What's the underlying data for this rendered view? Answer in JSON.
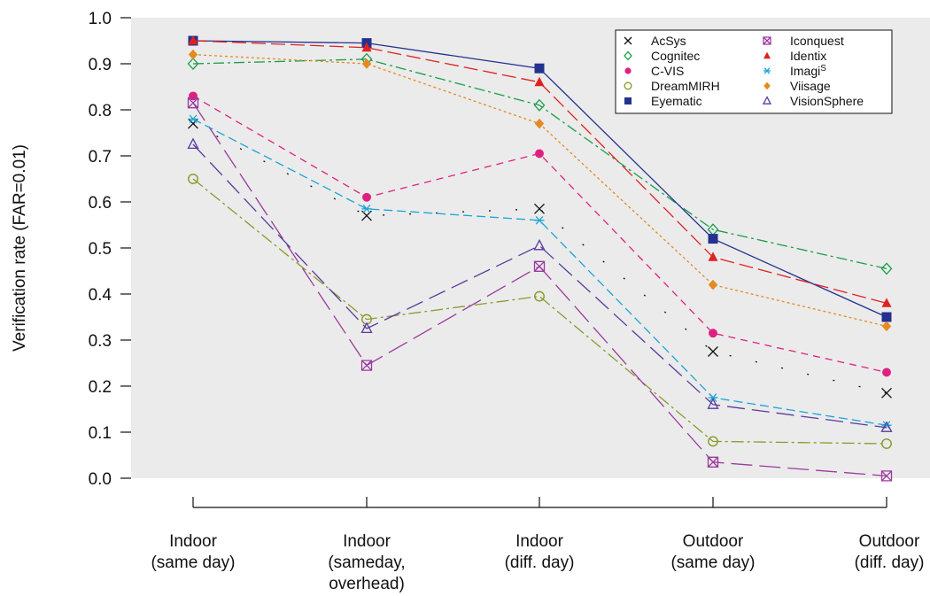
{
  "chart_data": {
    "type": "line",
    "title": "",
    "xlabel": "",
    "ylabel": "Verification rate (FAR=0.01)",
    "ylim": [
      0.0,
      1.0
    ],
    "yticks": [
      "1.0",
      "0.9",
      "0.8",
      "0.7",
      "0.6",
      "0.5",
      "0.4",
      "0.3",
      "0.2",
      "0.1",
      "0.0"
    ],
    "ytick_values": [
      1.0,
      0.9,
      0.8,
      0.7,
      0.6,
      0.5,
      0.4,
      0.3,
      0.2,
      0.1,
      0.0
    ],
    "grid": false,
    "background": "#ebebeb",
    "legend_position": "top-right",
    "categories": [
      [
        "Indoor",
        "(same day)"
      ],
      [
        "Indoor",
        "(sameday,",
        "overhead)"
      ],
      [
        "Indoor",
        "(diff. day)"
      ],
      [
        "Outdoor",
        "(same day)"
      ],
      [
        "Outdoor",
        "(diff. day)"
      ]
    ],
    "series": [
      {
        "name": "AcSys",
        "sup": "",
        "color": "#111111",
        "marker": "x",
        "dash": "2 28",
        "values": [
          0.77,
          0.57,
          0.585,
          0.275,
          0.185
        ]
      },
      {
        "name": "Cognitec",
        "sup": "",
        "color": "#1a9e4a",
        "marker": "diamond-open",
        "dash": "12 4 3 4",
        "values": [
          0.9,
          0.91,
          0.81,
          0.54,
          0.455
        ]
      },
      {
        "name": "C-VIS",
        "sup": "",
        "color": "#e0207f",
        "marker": "circle-filled",
        "dash": "8 6",
        "values": [
          0.83,
          0.61,
          0.705,
          0.315,
          0.23
        ]
      },
      {
        "name": "DreamMIRH",
        "sup": "",
        "color": "#8a9a2a",
        "marker": "circle-open",
        "dash": "14 4 3 4",
        "values": [
          0.65,
          0.345,
          0.395,
          0.08,
          0.075
        ]
      },
      {
        "name": "Eyematic",
        "sup": "",
        "color": "#23318f",
        "marker": "square-filled",
        "dash": "",
        "values": [
          0.95,
          0.945,
          0.89,
          0.52,
          0.35
        ]
      },
      {
        "name": "Iconquest",
        "sup": "",
        "color": "#9b3a9e",
        "marker": "square-x",
        "dash": "24 8",
        "values": [
          0.815,
          0.245,
          0.46,
          0.035,
          0.005
        ]
      },
      {
        "name": "Identix",
        "sup": "",
        "color": "#e02121",
        "marker": "triangle-filled",
        "dash": "16 6",
        "values": [
          0.95,
          0.935,
          0.86,
          0.48,
          0.38
        ]
      },
      {
        "name": "Imagi",
        "sup": "S",
        "color": "#1aa5d9",
        "marker": "asterisk",
        "dash": "10 5",
        "values": [
          0.78,
          0.585,
          0.56,
          0.175,
          0.115
        ]
      },
      {
        "name": "Viisage",
        "sup": "",
        "color": "#e58a1f",
        "marker": "diamond-filled",
        "dash": "3 3",
        "values": [
          0.92,
          0.9,
          0.77,
          0.42,
          0.33
        ]
      },
      {
        "name": "VisionSphere",
        "sup": "",
        "color": "#5a3a9e",
        "marker": "triangle-open",
        "dash": "20 8",
        "values": [
          0.725,
          0.325,
          0.505,
          0.16,
          0.11
        ]
      }
    ]
  }
}
